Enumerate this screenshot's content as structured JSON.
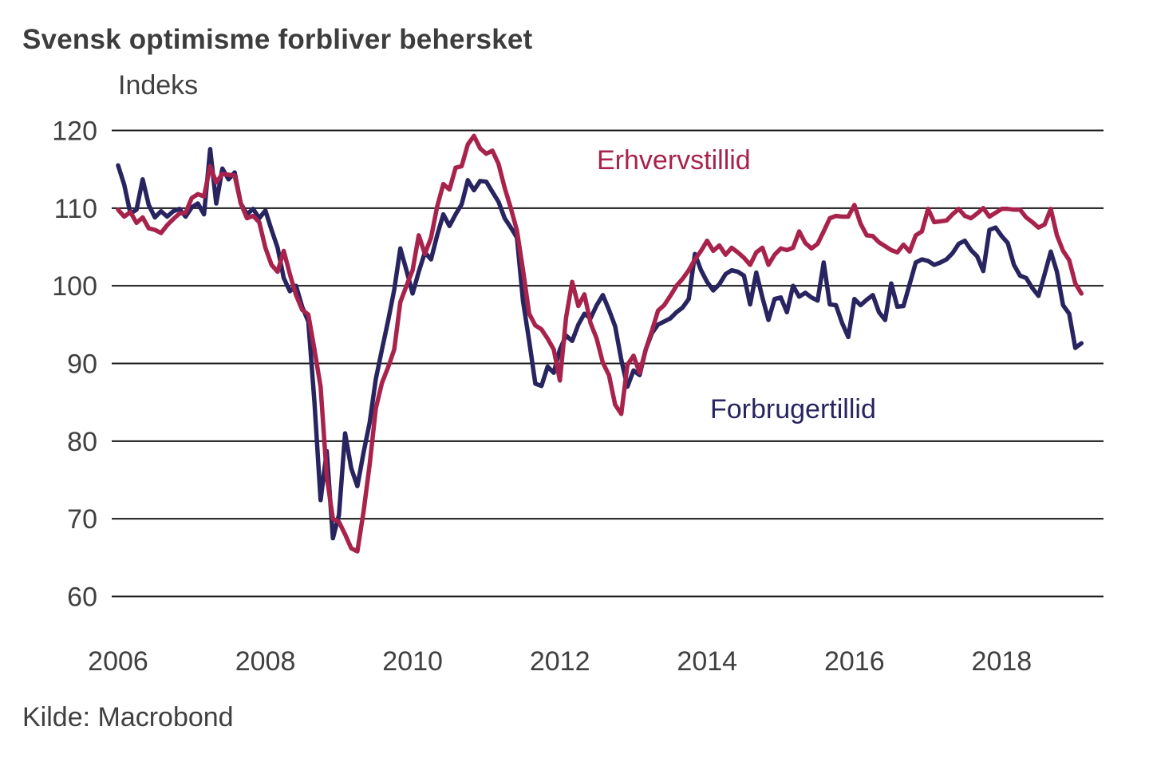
{
  "title": "Svensk optimisme forbliver behersket",
  "y_axis_unit": "Indeks",
  "source": "Kilde: Macrobond",
  "legend": {
    "business_label": "Erhvervstillid",
    "consumer_label": "Forbrugertillid"
  },
  "colors": {
    "business_line": "#A8234C",
    "consumer_line": "#282460",
    "grid_line": "#1a1a1a",
    "tick_text": "#404040",
    "title_text": "#3d3d3d",
    "background": "#ffffff"
  },
  "chart_data": {
    "type": "line",
    "title": "Svensk optimisme forbliver behersket",
    "xlabel": "",
    "ylabel": "Indeks",
    "ylim": [
      60,
      120
    ],
    "yticks": [
      60,
      70,
      80,
      90,
      100,
      110,
      120
    ],
    "xticks": [
      2006,
      2008,
      2010,
      2012,
      2014,
      2016,
      2018
    ],
    "grid": "horizontal",
    "legend_position": "inline-annotations",
    "x_start_year": 2006,
    "x_start_month": 1,
    "frequency": "monthly",
    "x_end_year": 2019,
    "x_end_month": 2,
    "series": [
      {
        "name": "Erhvervstillid",
        "color": "#A8234C",
        "values": [
          109.8,
          108.9,
          109.5,
          108.1,
          108.8,
          107.4,
          107.2,
          106.8,
          107.8,
          108.6,
          109.3,
          109.4,
          111.3,
          111.8,
          111.5,
          115.4,
          113.3,
          114.4,
          114.3,
          114.2,
          110.6,
          108.7,
          109.0,
          108.2,
          104.9,
          102.7,
          101.8,
          104.5,
          101.5,
          98.8,
          96.9,
          96.3,
          91.8,
          87.0,
          75.5,
          70.0,
          69.6,
          68.0,
          66.2,
          65.8,
          70.9,
          77.0,
          84.2,
          87.5,
          89.5,
          91.8,
          97.9,
          100.0,
          102.0,
          106.5,
          104.1,
          106.2,
          110.2,
          113.1,
          112.4,
          115.2,
          115.4,
          118.2,
          119.3,
          117.7,
          117.0,
          117.4,
          115.7,
          112.6,
          110.0,
          107.1,
          102.0,
          96.4,
          94.9,
          94.4,
          93.2,
          91.8,
          87.8,
          95.9,
          100.5,
          97.4,
          98.9,
          95.2,
          93.2,
          90.1,
          88.5,
          84.7,
          83.5,
          89.8,
          91.0,
          88.8,
          91.8,
          94.2,
          96.8,
          97.5,
          98.7,
          100.0,
          100.9,
          102.0,
          103.4,
          104.5,
          105.8,
          104.5,
          105.2,
          104.0,
          104.9,
          104.3,
          103.6,
          102.7,
          104.3,
          104.9,
          102.7,
          104.0,
          104.8,
          104.6,
          104.9,
          107.0,
          105.5,
          104.8,
          105.4,
          107.0,
          108.7,
          109.0,
          108.9,
          108.9,
          110.4,
          108.0,
          106.5,
          106.4,
          105.6,
          105.1,
          104.6,
          104.3,
          105.3,
          104.4,
          106.5,
          107.0,
          109.9,
          108.2,
          108.3,
          108.4,
          109.2,
          109.9,
          109.0,
          108.7,
          109.3,
          110.0,
          108.9,
          109.4,
          109.9,
          109.9,
          109.8,
          109.8,
          108.8,
          108.2,
          107.5,
          107.9,
          109.9,
          106.5,
          104.5,
          103.3,
          100.3,
          99.0
        ]
      },
      {
        "name": "Forbrugertillid",
        "color": "#282460",
        "values": [
          115.5,
          113.0,
          109.3,
          109.8,
          113.7,
          110.4,
          108.8,
          109.6,
          108.9,
          109.6,
          109.9,
          108.9,
          110.1,
          110.6,
          109.2,
          117.6,
          110.6,
          115.1,
          113.7,
          114.6,
          110.6,
          109.2,
          109.9,
          108.7,
          109.7,
          107.2,
          104.9,
          101.0,
          99.3,
          100.0,
          97.3,
          95.4,
          85.0,
          72.4,
          78.7,
          67.5,
          70.5,
          81.0,
          76.5,
          74.2,
          78.5,
          82.4,
          88.0,
          91.8,
          95.5,
          99.5,
          104.8,
          102.0,
          99.0,
          101.8,
          104.3,
          103.4,
          106.5,
          109.2,
          107.7,
          109.2,
          110.5,
          113.6,
          112.3,
          113.5,
          113.4,
          112.1,
          110.8,
          108.7,
          107.5,
          106.2,
          98.0,
          92.9,
          87.4,
          87.1,
          89.6,
          88.8,
          91.8,
          93.6,
          92.9,
          95.0,
          96.4,
          95.8,
          97.5,
          98.8,
          96.9,
          94.8,
          90.5,
          87.0,
          89.1,
          88.5,
          91.8,
          93.9,
          95.0,
          95.4,
          95.8,
          96.6,
          97.2,
          98.3,
          104.1,
          102.0,
          100.5,
          99.4,
          100.2,
          101.5,
          102.0,
          101.8,
          101.3,
          97.6,
          101.7,
          98.5,
          95.6,
          98.3,
          98.5,
          96.6,
          100.0,
          98.6,
          99.1,
          98.5,
          98.1,
          103.0,
          97.6,
          97.5,
          95.2,
          93.4,
          98.3,
          97.5,
          98.2,
          98.8,
          96.6,
          95.6,
          100.3,
          97.3,
          97.4,
          100.2,
          103.0,
          103.4,
          103.2,
          102.7,
          103.0,
          103.4,
          104.2,
          105.4,
          105.8,
          104.6,
          103.8,
          101.9,
          107.2,
          107.5,
          106.4,
          105.5,
          102.7,
          101.3,
          101.0,
          99.7,
          98.7,
          101.5,
          104.4,
          101.8,
          97.5,
          96.4,
          92.0,
          92.6
        ]
      }
    ]
  }
}
